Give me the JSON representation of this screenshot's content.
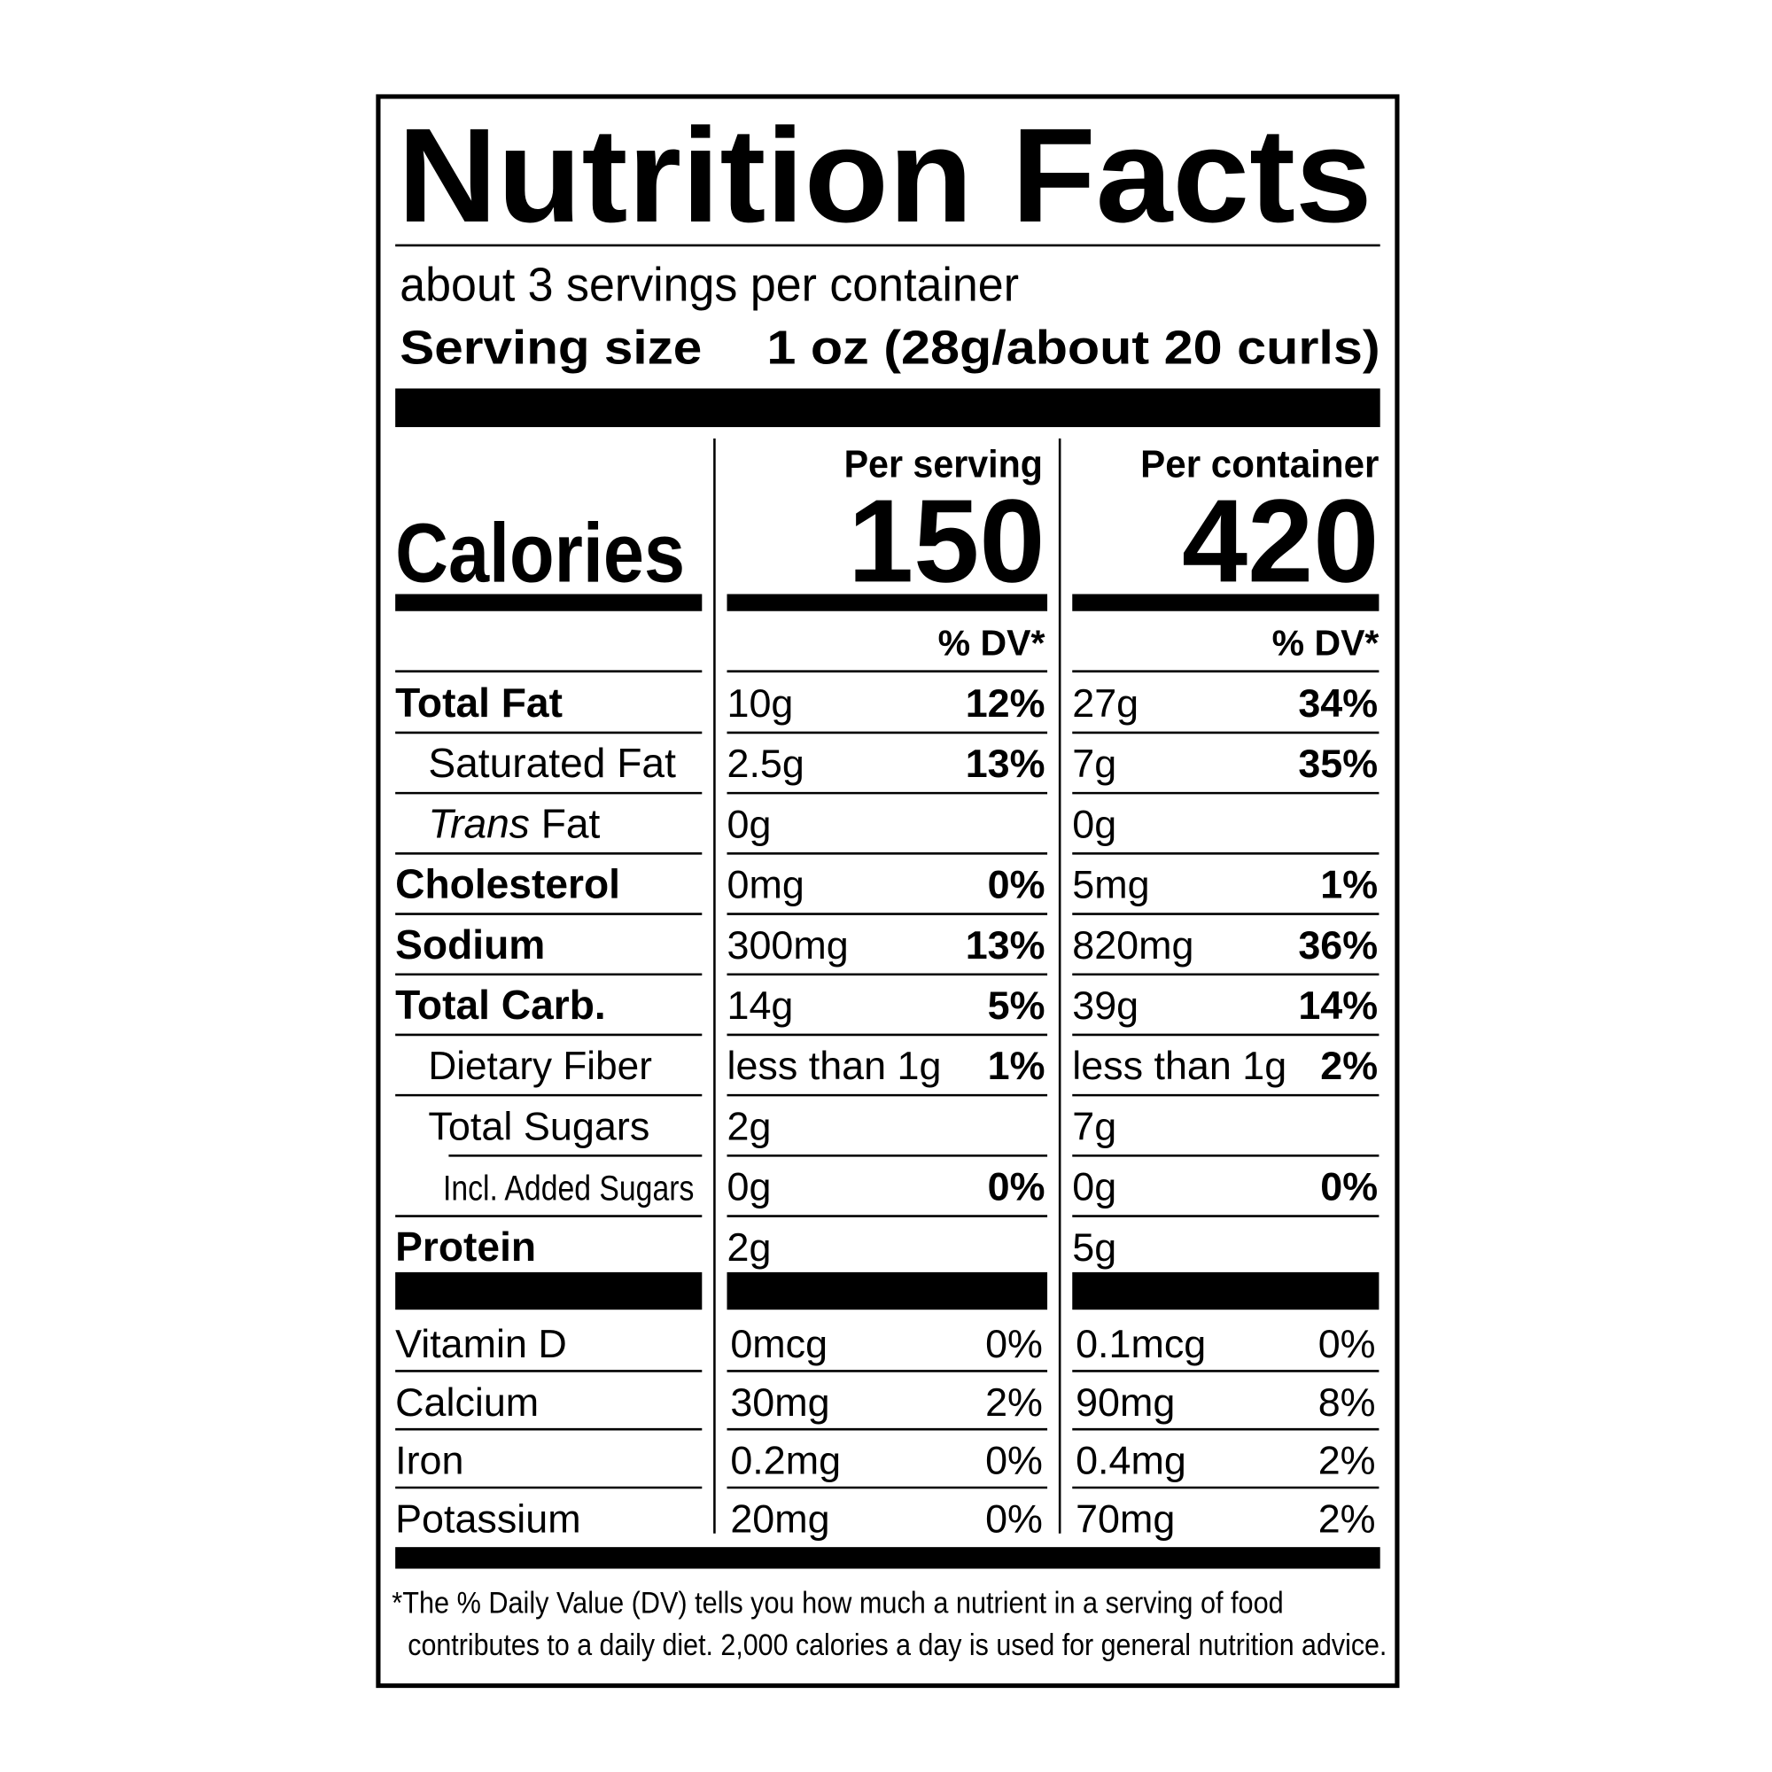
{
  "header": {
    "title": "Nutrition Facts",
    "servings": "about 3 servings per container",
    "serving_size_label": "Serving size",
    "serving_size_value": "1 oz (28g/about 20 curls)"
  },
  "columns": [
    "Per serving",
    "Per container"
  ],
  "calories": {
    "label": "Calories",
    "per_serving": "150",
    "per_container": "420"
  },
  "dv_header": [
    "% DV*",
    "% DV*"
  ],
  "nutrients": [
    {
      "name": "Total Fat",
      "per_serving": {
        "amount": "10g",
        "dv": "12%"
      },
      "per_container": {
        "amount": "27g",
        "dv": "34%"
      }
    },
    {
      "name": "Saturated Fat",
      "per_serving": {
        "amount": "2.5g",
        "dv": "13%"
      },
      "per_container": {
        "amount": "7g",
        "dv": "35%"
      }
    },
    {
      "name_italic": "Trans",
      "name": "Fat",
      "per_serving": {
        "amount": "0g"
      },
      "per_container": {
        "amount": "0g"
      }
    },
    {
      "name": "Cholesterol",
      "per_serving": {
        "amount": "0mg",
        "dv": "0%"
      },
      "per_container": {
        "amount": "5mg",
        "dv": "1%"
      }
    },
    {
      "name": "Sodium",
      "per_serving": {
        "amount": "300mg",
        "dv": "13%"
      },
      "per_container": {
        "amount": "820mg",
        "dv": "36%"
      }
    },
    {
      "name": "Total Carb.",
      "per_serving": {
        "amount": "14g",
        "dv": "5%"
      },
      "per_container": {
        "amount": "39g",
        "dv": "14%"
      }
    },
    {
      "name": "Dietary Fiber",
      "per_serving": {
        "amount": "less than 1g",
        "dv": "1%"
      },
      "per_container": {
        "amount": "less than 1g",
        "dv": "2%"
      }
    },
    {
      "name": "Total Sugars",
      "per_serving": {
        "amount": "2g"
      },
      "per_container": {
        "amount": "7g"
      }
    },
    {
      "name": "Incl. Added Sugars",
      "per_serving": {
        "amount": "0g",
        "dv": "0%"
      },
      "per_container": {
        "amount": "0g",
        "dv": "0%"
      }
    },
    {
      "name": "Protein",
      "per_serving": {
        "amount": "2g"
      },
      "per_container": {
        "amount": "5g"
      }
    }
  ],
  "vitamins": [
    {
      "name": "Vitamin D",
      "per_serving": {
        "amount": "0mcg",
        "dv": "0%"
      },
      "per_container": {
        "amount": "0.1mcg",
        "dv": "0%"
      }
    },
    {
      "name": "Calcium",
      "per_serving": {
        "amount": "30mg",
        "dv": "2%"
      },
      "per_container": {
        "amount": "90mg",
        "dv": "8%"
      }
    },
    {
      "name": "Iron",
      "per_serving": {
        "amount": "0.2mg",
        "dv": "0%"
      },
      "per_container": {
        "amount": "0.4mg",
        "dv": "2%"
      }
    },
    {
      "name": "Potassium",
      "per_serving": {
        "amount": "20mg",
        "dv": "0%"
      },
      "per_container": {
        "amount": "70mg",
        "dv": "2%"
      }
    }
  ],
  "footnote": [
    "*The % Daily Value (DV) tells you how much a nutrient in a serving of food",
    "contributes to a daily diet. 2,000 calories a day is used for general nutrition advice."
  ]
}
